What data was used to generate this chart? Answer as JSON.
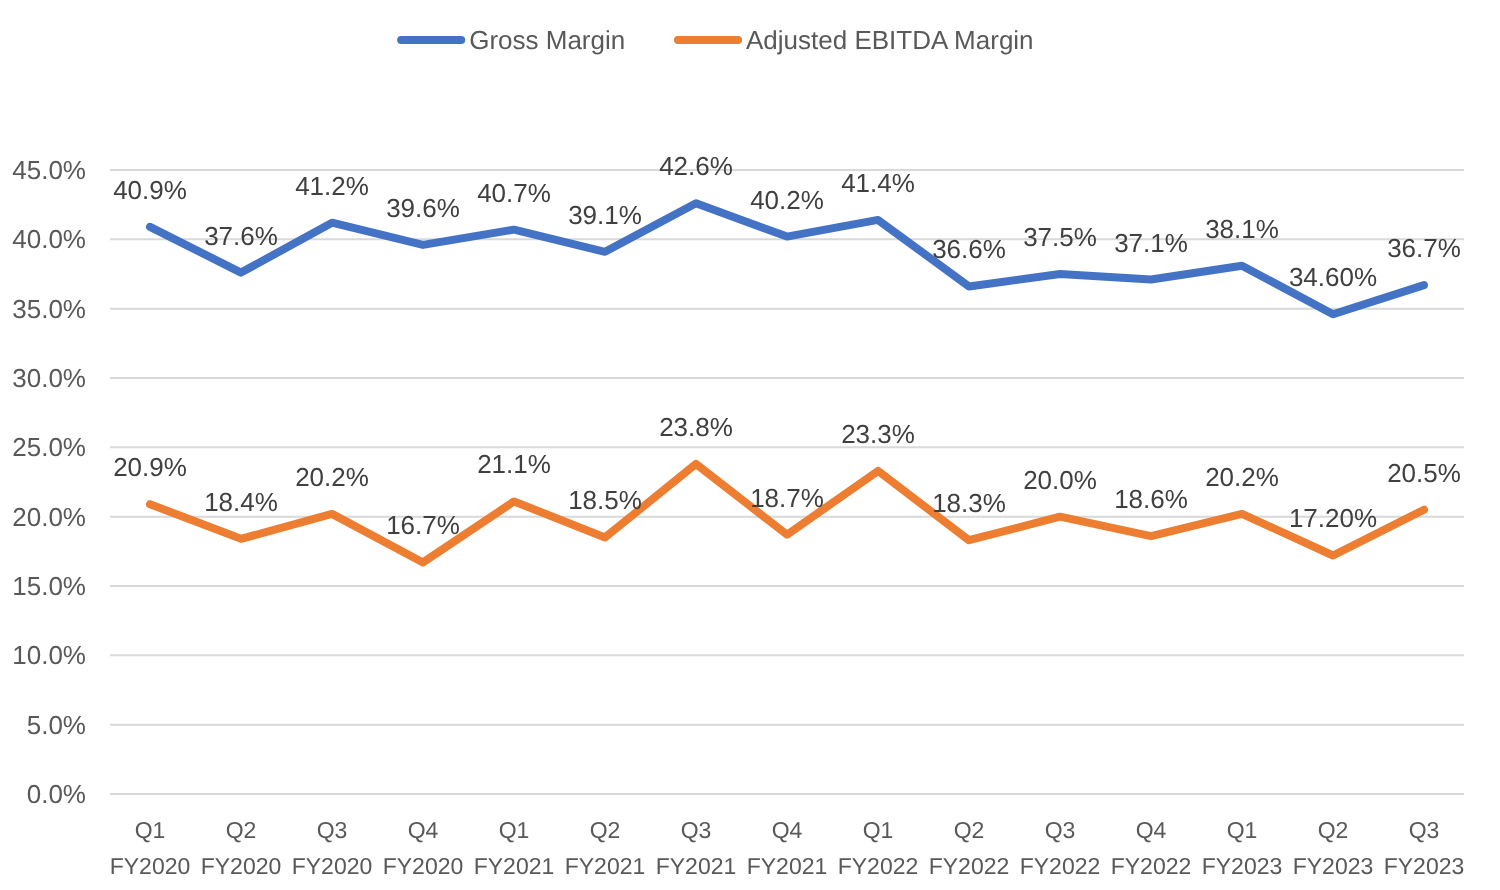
{
  "chart_data": {
    "type": "line",
    "categories": [
      "Q1 FY2020",
      "Q2 FY2020",
      "Q3 FY2020",
      "Q4 FY2020",
      "Q1 FY2021",
      "Q2 FY2021",
      "Q3 FY2021",
      "Q4 FY2021",
      "Q1 FY2022",
      "Q2 FY2022",
      "Q3 FY2022",
      "Q4 FY2022",
      "Q1 FY2023",
      "Q2 FY2023",
      "Q3 FY2023"
    ],
    "series": [
      {
        "name": "Gross Margin",
        "color": "#4472c4",
        "values": [
          40.9,
          37.6,
          41.2,
          39.6,
          40.7,
          39.1,
          42.6,
          40.2,
          41.4,
          36.6,
          37.5,
          37.1,
          38.1,
          34.6,
          36.7
        ],
        "value_labels": [
          "40.9%",
          "37.6%",
          "41.2%",
          "39.6%",
          "40.7%",
          "39.1%",
          "42.6%",
          "40.2%",
          "41.4%",
          "36.6%",
          "37.5%",
          "37.1%",
          "38.1%",
          "34.60%",
          "36.7%"
        ]
      },
      {
        "name": "Adjusted EBITDA Margin",
        "color": "#ed7d31",
        "values": [
          20.9,
          18.4,
          20.2,
          16.7,
          21.1,
          18.5,
          23.8,
          18.7,
          23.3,
          18.3,
          20.0,
          18.6,
          20.2,
          17.2,
          20.5
        ],
        "value_labels": [
          "20.9%",
          "18.4%",
          "20.2%",
          "16.7%",
          "21.1%",
          "18.5%",
          "23.8%",
          "18.7%",
          "23.3%",
          "18.3%",
          "20.0%",
          "18.6%",
          "20.2%",
          "17.20%",
          "20.5%"
        ]
      }
    ],
    "ylim": [
      0,
      45
    ],
    "yticks": [
      {
        "value": 0,
        "label": "0.0%"
      },
      {
        "value": 5,
        "label": "5.0%"
      },
      {
        "value": 10,
        "label": "10.0%"
      },
      {
        "value": 15,
        "label": "15.0%"
      },
      {
        "value": 20,
        "label": "20.0%"
      },
      {
        "value": 25,
        "label": "25.0%"
      },
      {
        "value": 30,
        "label": "30.0%"
      },
      {
        "value": 35,
        "label": "35.0%"
      },
      {
        "value": 40,
        "label": "40.0%"
      },
      {
        "value": 45,
        "label": "45.0%"
      }
    ],
    "grid": "y",
    "legend": "top",
    "marker": "none",
    "line_style": "solid"
  }
}
